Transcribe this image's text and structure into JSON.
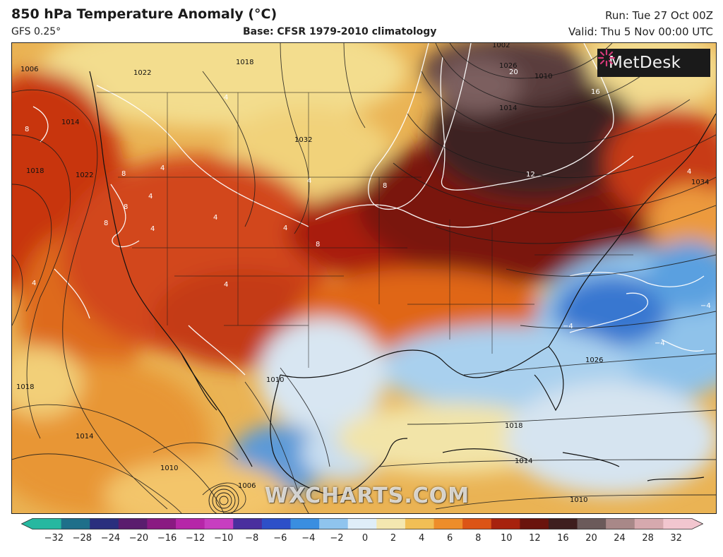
{
  "header": {
    "title": "850 hPa Temperature Anomaly (°C)",
    "model": "GFS 0.25°",
    "base": "Base: CFSR 1979-2010 climatology",
    "run": "Run: Tue 27 Oct 00Z",
    "valid": "Valid: Thu 5 Nov 00:00 UTC"
  },
  "logo": {
    "text": "MetDesk",
    "icon": "metdesk-starburst-icon"
  },
  "watermark": "WXCHARTS.COM",
  "colorbar": {
    "ticks": [
      "−32",
      "−28",
      "−24",
      "−20",
      "−16",
      "−12",
      "−10",
      "−8",
      "−6",
      "−4",
      "−2",
      "0",
      "2",
      "4",
      "6",
      "8",
      "10",
      "12",
      "16",
      "20",
      "24",
      "28",
      "32"
    ],
    "colors": [
      "#26b8a0",
      "#1e6f8a",
      "#2a2f7e",
      "#5a1d6e",
      "#8a1a82",
      "#b626a8",
      "#c73ec0",
      "#4a2f9e",
      "#2d50c8",
      "#3a8ee0",
      "#8fc4ee",
      "#dfeef8",
      "#f4e7b0",
      "#f2bf55",
      "#ee8d2a",
      "#dc5416",
      "#a7220e",
      "#6a140d",
      "#3e1e1e",
      "#6b5a5a",
      "#a88888",
      "#d6a9ae",
      "#f2c6cf"
    ]
  },
  "map_labels": {
    "isobars": [
      "1006",
      "1014",
      "1018",
      "1022",
      "1018",
      "1022",
      "1032",
      "1002",
      "1026",
      "1010",
      "1014",
      "1034",
      "1026",
      "1018",
      "1014",
      "1010",
      "1010",
      "1018",
      "1014",
      "1010",
      "1006"
    ],
    "anomalies": [
      "8",
      "8",
      "8",
      "8",
      "4",
      "4",
      "4",
      "4",
      "4",
      "4",
      "8",
      "8",
      "20",
      "16",
      "12",
      "4",
      "4",
      "4",
      "4",
      "−4",
      "−4",
      "−4"
    ]
  }
}
